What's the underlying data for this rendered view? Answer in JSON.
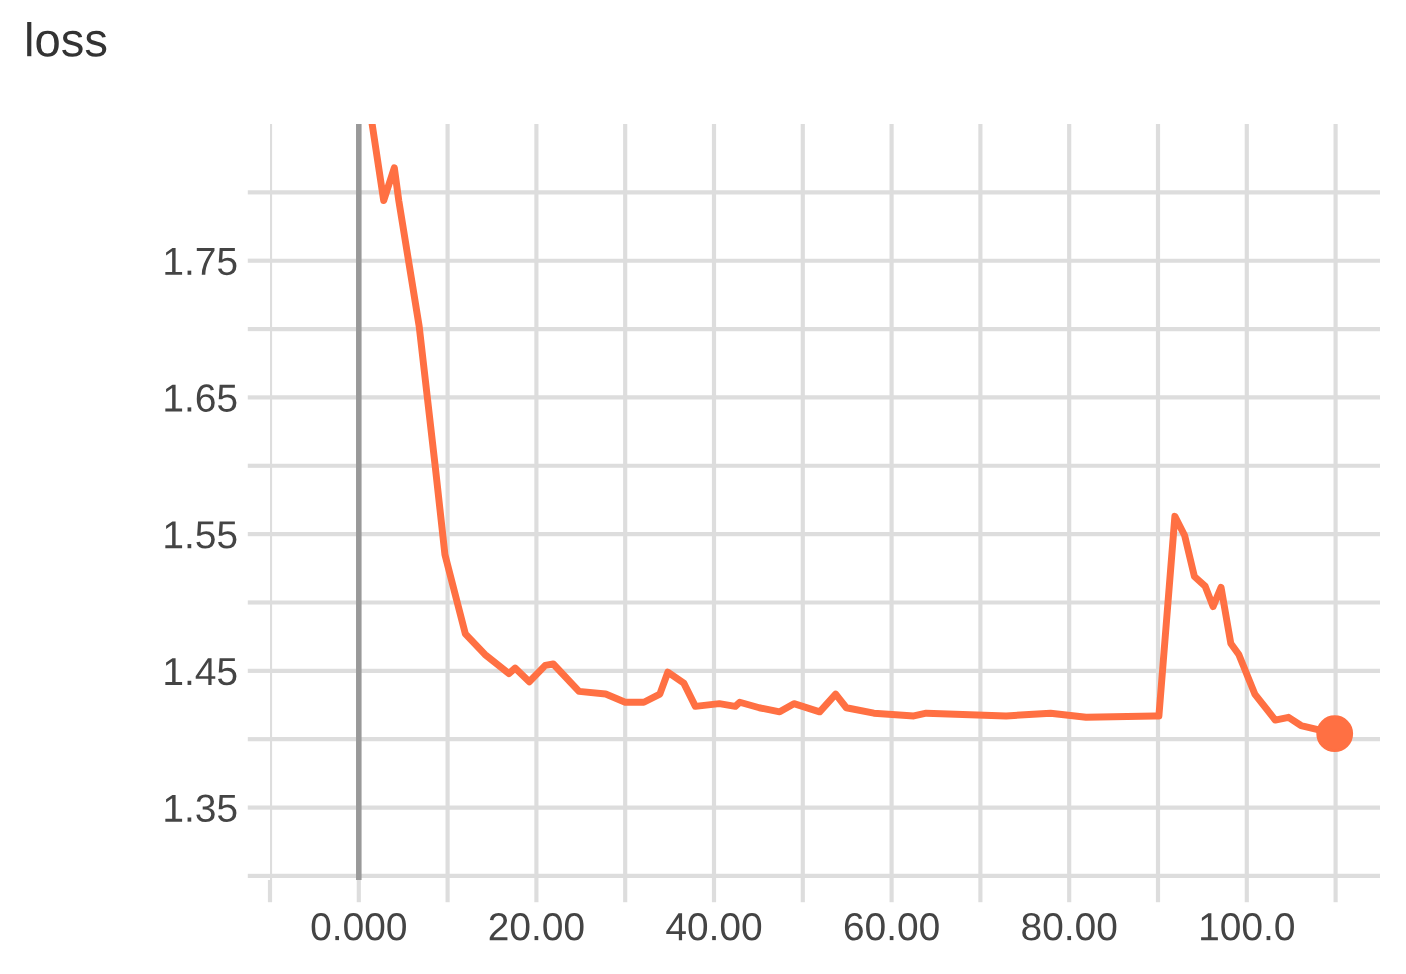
{
  "chart_data": {
    "type": "line",
    "title": "loss",
    "series": [
      {
        "color": "#ff7043",
        "x": [
          1.5,
          2.8,
          4.0,
          4.5,
          6.8,
          8.6,
          9.7,
          12.0,
          14.2,
          16.9,
          17.6,
          19.2,
          21.0,
          21.9,
          24.8,
          27.8,
          30.0,
          32.1,
          33.9,
          34.8,
          36.6,
          37.9,
          40.6,
          42.4,
          42.9,
          45.1,
          47.4,
          49.0,
          51.9,
          53.7,
          54.9,
          58.0,
          62.5,
          63.9,
          72.9,
          77.9,
          81.9,
          89.6,
          90.1,
          91.9,
          93.0,
          94.1,
          95.3,
          96.2,
          97.1,
          98.2,
          99.1,
          100.9,
          103.2,
          104.7,
          106.1,
          109.9
        ],
        "values": [
          1.85,
          1.794,
          1.818,
          1.794,
          1.702,
          1.6,
          1.535,
          1.477,
          1.462,
          1.448,
          1.452,
          1.442,
          1.454,
          1.455,
          1.435,
          1.433,
          1.427,
          1.427,
          1.433,
          1.449,
          1.441,
          1.424,
          1.426,
          1.424,
          1.427,
          1.423,
          1.42,
          1.426,
          1.42,
          1.433,
          1.423,
          1.419,
          1.417,
          1.419,
          1.417,
          1.419,
          1.416,
          1.417,
          1.417,
          1.563,
          1.549,
          1.519,
          1.512,
          1.497,
          1.511,
          1.47,
          1.462,
          1.433,
          1.414,
          1.416,
          1.41,
          1.404
        ]
      },
      {
        "type": "scatter",
        "color": "#ff7043",
        "x": [
          109.9
        ],
        "values": [
          1.404
        ]
      }
    ],
    "xlim": [
      -10,
      115
    ],
    "ylim": [
      1.297,
      1.85
    ],
    "xticks": [
      {
        "value": -10,
        "label": null
      },
      {
        "value": 0,
        "label": "0.000"
      },
      {
        "value": 10,
        "label": null
      },
      {
        "value": 20,
        "label": "20.00"
      },
      {
        "value": 30,
        "label": null
      },
      {
        "value": 40,
        "label": "40.00"
      },
      {
        "value": 50,
        "label": null
      },
      {
        "value": 60,
        "label": "60.00"
      },
      {
        "value": 70,
        "label": null
      },
      {
        "value": 80,
        "label": "80.00"
      },
      {
        "value": 90,
        "label": null
      },
      {
        "value": 100,
        "label": "100.0"
      },
      {
        "value": 110,
        "label": null
      }
    ],
    "yticks": [
      {
        "value": 1.3,
        "label": null
      },
      1.35,
      {
        "value": 1.4,
        "label": null
      },
      1.45,
      {
        "value": 1.5,
        "label": null
      },
      1.55,
      {
        "value": 1.6,
        "label": null
      },
      1.65,
      {
        "value": 1.7,
        "label": null
      },
      1.75,
      {
        "value": 1.8,
        "label": null
      }
    ],
    "ref_lines": [
      {
        "axis": "x",
        "value": 0,
        "color": "#999999"
      }
    ],
    "grid": true,
    "legend": false
  }
}
